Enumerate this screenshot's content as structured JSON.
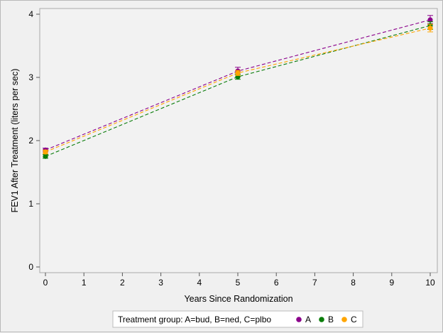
{
  "chart_data": {
    "type": "line",
    "xlabel": "Years Since Randomization",
    "ylabel": "FEV1 After Treatment (liters per sec)",
    "xlim": [
      0,
      10
    ],
    "ylim": [
      0,
      4
    ],
    "x_ticks": [
      "0",
      "1",
      "2",
      "3",
      "4",
      "5",
      "6",
      "7",
      "8",
      "9",
      "10"
    ],
    "y_ticks": [
      "0",
      "1",
      "2",
      "3",
      "4"
    ],
    "grid": false,
    "line_style": "dashed",
    "x": [
      0,
      5,
      10
    ],
    "series": [
      {
        "name": "A",
        "color": "#8b008b",
        "values": [
          1.85,
          3.1,
          3.91
        ],
        "err_low": [
          1.82,
          3.05,
          3.85
        ],
        "err_high": [
          1.88,
          3.16,
          3.98
        ]
      },
      {
        "name": "B",
        "color": "#0a7d0a",
        "values": [
          1.75,
          3.01,
          3.82
        ],
        "err_low": [
          1.72,
          2.97,
          3.76
        ],
        "err_high": [
          1.78,
          3.05,
          3.88
        ]
      },
      {
        "name": "C",
        "color": "#ffa500",
        "values": [
          1.82,
          3.07,
          3.78
        ],
        "err_low": [
          1.79,
          3.03,
          3.72
        ],
        "err_high": [
          1.85,
          3.11,
          3.84
        ]
      }
    ],
    "legend": {
      "title": "Treatment group:  A=bud, B=ned, C=plbo",
      "placement": "bottom"
    }
  }
}
